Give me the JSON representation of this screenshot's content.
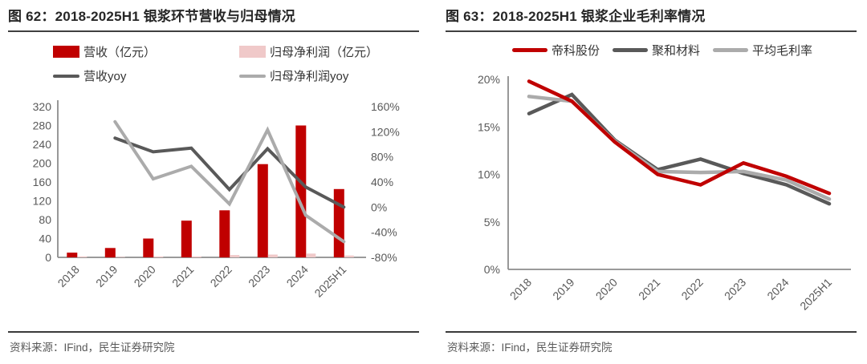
{
  "colors": {
    "red": "#c00000",
    "pink": "#f0c9c9",
    "dark_gray": "#595959",
    "light_gray": "#ababab",
    "axis": "#8c8c8c",
    "tick_text": "#595959",
    "title_text": "#262626",
    "rule": "#404040",
    "source_text": "#595959"
  },
  "figures": [
    {
      "title": "图 62：2018-2025H1 银浆环节营收与归母情况",
      "legend": [
        {
          "label": "营收（亿元）",
          "swatch": "bar",
          "color": "#c00000"
        },
        {
          "label": "归母净利润（亿元）",
          "swatch": "bar",
          "color": "#f0c9c9"
        },
        {
          "label": "营收yoy",
          "swatch": "line",
          "color": "#595959"
        },
        {
          "label": "归母净利润yoy",
          "swatch": "line",
          "color": "#ababab"
        }
      ],
      "source": "资料来源：IFind，民生证券研究院"
    },
    {
      "title": "图 63：2018-2025H1 银浆企业毛利率情况",
      "legend": [
        {
          "label": "帝科股份",
          "swatch": "line",
          "color": "#c00000"
        },
        {
          "label": "聚和材料",
          "swatch": "line",
          "color": "#595959"
        },
        {
          "label": "平均毛利率",
          "swatch": "line",
          "color": "#ababab"
        }
      ],
      "source": "资料来源：IFind，民生证券研究院"
    }
  ],
  "chart_data": [
    {
      "type": "bar",
      "subtype": "bar+line-dual-axis",
      "title": "图 62：2018-2025H1 银浆环节营收与归母情况",
      "categories": [
        "2018",
        "2019",
        "2020",
        "2021",
        "2022",
        "2023",
        "2024",
        "2025H1"
      ],
      "bar_series": [
        {
          "name": "营收（亿元）",
          "axis": "left",
          "color": "#c00000",
          "values": [
            10,
            20,
            40,
            78,
            100,
            198,
            280,
            145
          ]
        },
        {
          "name": "归母净利润（亿元）",
          "axis": "left",
          "color": "#f0c9c9",
          "values": [
            2,
            1,
            2,
            2,
            5,
            6,
            8,
            4
          ]
        }
      ],
      "line_series": [
        {
          "name": "营收yoy",
          "axis": "right",
          "unit": "%",
          "color": "#595959",
          "values": [
            null,
            110,
            88,
            94,
            28,
            93,
            32,
            0
          ]
        },
        {
          "name": "归母净利润yoy",
          "axis": "right",
          "unit": "%",
          "color": "#ababab",
          "values": [
            null,
            136,
            45,
            65,
            5,
            123,
            -13,
            -55
          ]
        }
      ],
      "left_axis": {
        "min": 0,
        "max": 320,
        "step": 40,
        "suffix": ""
      },
      "right_axis": {
        "min": -80,
        "max": 160,
        "step": 40,
        "suffix": "%"
      },
      "grid": false,
      "legend_position": "top"
    },
    {
      "type": "line",
      "title": "图 63：2018-2025H1 银浆企业毛利率情况",
      "categories": [
        "2018",
        "2019",
        "2020",
        "2021",
        "2022",
        "2023",
        "2024",
        "2025H1"
      ],
      "series": [
        {
          "name": "帝科股份",
          "color": "#c00000",
          "values": [
            19.8,
            17.7,
            13.4,
            10.0,
            8.9,
            11.2,
            9.8,
            8.0
          ]
        },
        {
          "name": "聚和材料",
          "color": "#595959",
          "values": [
            16.4,
            18.4,
            13.6,
            10.5,
            11.6,
            10.1,
            8.9,
            6.9
          ]
        },
        {
          "name": "平均毛利率",
          "color": "#ababab",
          "values": [
            18.2,
            17.7,
            13.5,
            10.3,
            10.2,
            10.3,
            9.4,
            7.4
          ]
        }
      ],
      "y_axis": {
        "min": 0,
        "max": 20,
        "step": 5,
        "suffix": "%"
      },
      "grid": false,
      "legend_position": "top"
    }
  ]
}
